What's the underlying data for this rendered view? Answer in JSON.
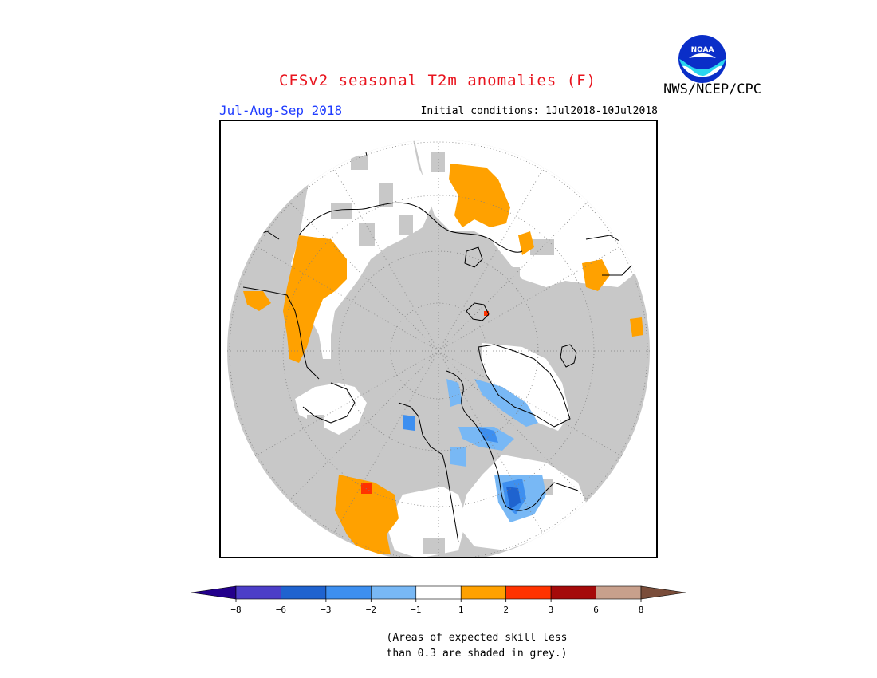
{
  "header": {
    "title": "CFSv2 seasonal T2m anomalies (F)",
    "agency": "NWS/NCEP/CPC",
    "season": "Jul-Aug-Sep 2018",
    "initial_conditions": "Initial conditions: 1Jul2018-10Jul2018",
    "logo_text": "NOAA"
  },
  "map": {
    "projection": "polar-stereographic",
    "region": "Northern Hemisphere (north of ~20N)",
    "background_color": "#c8c8c8",
    "grid": "dotted lat/lon lines",
    "coastlines": true
  },
  "legend": {
    "units": "F",
    "tick_labels": [
      "-8",
      "-6",
      "-3",
      "-2",
      "-1",
      "1",
      "2",
      "3",
      "6",
      "8"
    ],
    "bins": [
      {
        "range": "< -8",
        "color": "#23008c"
      },
      {
        "range": "-8 to -6",
        "color": "#4c3ec8"
      },
      {
        "range": "-6 to -3",
        "color": "#1f63cf"
      },
      {
        "range": "-3 to -2",
        "color": "#3d8ff0"
      },
      {
        "range": "-2 to -1",
        "color": "#78b8f5"
      },
      {
        "range": "-1 to 1",
        "color": "#ffffff"
      },
      {
        "range": "1 to 2",
        "color": "#ffa100"
      },
      {
        "range": "2 to 3",
        "color": "#ff3300"
      },
      {
        "range": "3 to 6",
        "color": "#a50a0a"
      },
      {
        "range": "6 to 8",
        "color": "#c8a08c"
      },
      {
        "range": "> 8",
        "color": "#7a4d3a"
      }
    ]
  },
  "notes": {
    "line1": "(Areas of expected skill less",
    "line2": "than 0.3 are shaded in grey.)"
  }
}
